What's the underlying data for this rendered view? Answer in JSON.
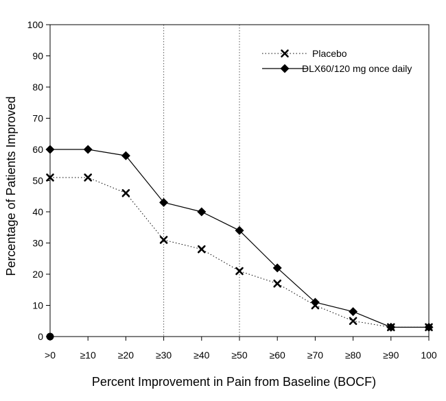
{
  "chart_data": {
    "type": "line",
    "title": "",
    "xlabel": "Percent Improvement in Pain from Baseline (BOCF)",
    "ylabel": "Percentage of Patients Improved",
    "categories": [
      ">0",
      "≥10",
      "≥20",
      "≥30",
      "≥40",
      "≥50",
      "≥60",
      "≥70",
      "≥80",
      "≥90",
      "100"
    ],
    "ylim": [
      0,
      100
    ],
    "yticks": [
      0,
      10,
      20,
      30,
      40,
      50,
      60,
      70,
      80,
      90,
      100
    ],
    "reference_lines_at": [
      "≥30",
      "≥50"
    ],
    "legend_position": "top-right",
    "series": [
      {
        "name": "Placebo",
        "marker": "x",
        "line_style": "dotted",
        "values": [
          51,
          51,
          46,
          31,
          28,
          21,
          17,
          10,
          5,
          3,
          3
        ]
      },
      {
        "name": "DLX60/120 mg once daily",
        "marker": "diamond",
        "line_style": "solid",
        "values": [
          60,
          60,
          58,
          43,
          40,
          34,
          22,
          11,
          8,
          3,
          3
        ]
      }
    ],
    "extra_points": [
      {
        "category": ">0",
        "value": 0,
        "marker": "circle"
      }
    ]
  }
}
